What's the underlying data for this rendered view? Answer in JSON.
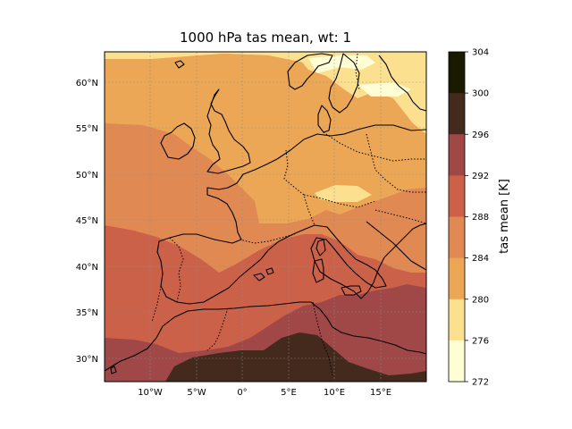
{
  "title": "1000 hPa tas mean, wt: 1",
  "map": {
    "lon_ticks": [
      "10°W",
      "5°W",
      "0°",
      "5°E",
      "10°E",
      "15°E"
    ],
    "lat_ticks": [
      "60°N",
      "55°N",
      "50°N",
      "45°N",
      "40°N",
      "35°N",
      "30°N"
    ]
  },
  "colorbar": {
    "label": "tas mean [K]",
    "ticks": [
      "304",
      "300",
      "296",
      "292",
      "288",
      "284",
      "280",
      "276",
      "272"
    ],
    "colors": [
      "#1a1a00",
      "#432a1d",
      "#a04748",
      "#cc6149",
      "#e08952",
      "#eba755",
      "#fbe08f",
      "#fffdd4"
    ]
  }
}
